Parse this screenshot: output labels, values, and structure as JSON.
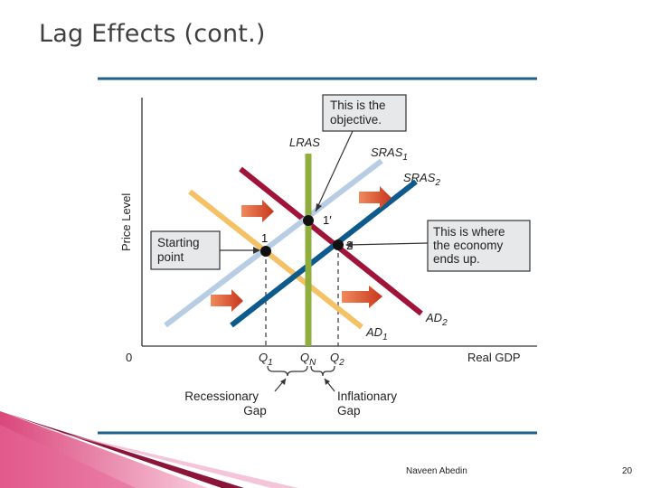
{
  "slide": {
    "title": "Lag Effects (cont.)",
    "author": "Naveen Abedin",
    "page_number": "20"
  },
  "diagram": {
    "y_axis_label": "Price Level",
    "x_axis_label": "Real GDP",
    "origin_label": "0",
    "curves": {
      "lras": "LRAS",
      "sras1": {
        "base": "SRAS",
        "sub": "1"
      },
      "sras2": {
        "base": "SRAS",
        "sub": "2"
      },
      "ad1": {
        "base": "AD",
        "sub": "1"
      },
      "ad2": {
        "base": "AD",
        "sub": "2"
      }
    },
    "points": {
      "p1": "1",
      "p1prime": "1′",
      "p2": "2"
    },
    "ticks": {
      "q1": {
        "base": "Q",
        "sub": "1"
      },
      "qn": {
        "base": "Q",
        "sub": "N"
      },
      "q2": {
        "base": "Q",
        "sub": "2"
      }
    },
    "callouts": {
      "objective": [
        "This is the",
        "objective."
      ],
      "starting": [
        "Starting",
        "point"
      ],
      "ends_up": [
        "This is where",
        "the economy",
        "ends up."
      ]
    },
    "gaps": {
      "recessionary": [
        "Recessionary",
        "Gap"
      ],
      "inflationary": [
        "Inflationary",
        "Gap"
      ]
    },
    "colors": {
      "lras": "#8fae3e",
      "sras1": "#b7cde3",
      "sras2": "#0d5a8c",
      "ad1": "#f5c166",
      "ad2": "#a0143a",
      "rule": "#1f5f8b",
      "shift_arrow": "#d9542a"
    }
  }
}
